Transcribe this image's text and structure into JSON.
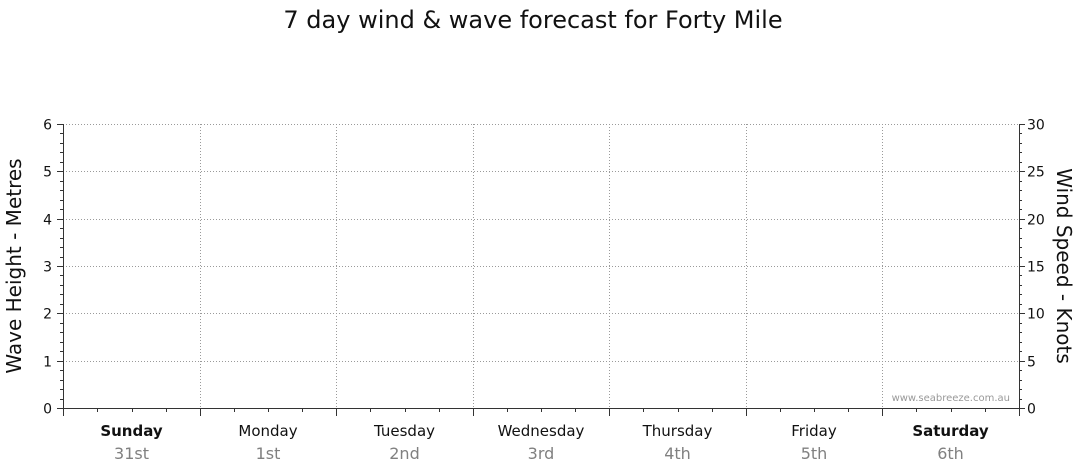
{
  "chart_data": {
    "type": "line",
    "title": "7 day wind & wave forecast for Forty Mile",
    "ylabel_left": "Wave Height - Metres",
    "ylabel_right": "Wind Speed - Knots",
    "y_left_range": [
      0,
      6
    ],
    "y_left_ticks": [
      "0",
      "1",
      "2",
      "3",
      "4",
      "5",
      "6"
    ],
    "y_right_range": [
      0,
      30
    ],
    "y_right_ticks": [
      "0",
      "5",
      "10",
      "15",
      "20",
      "25",
      "30"
    ],
    "grid": true,
    "days": [
      {
        "name": "Sunday",
        "date": "31st",
        "bold": true
      },
      {
        "name": "Monday",
        "date": "1st",
        "bold": false
      },
      {
        "name": "Tuesday",
        "date": "2nd",
        "bold": false
      },
      {
        "name": "Wednesday",
        "date": "3rd",
        "bold": false
      },
      {
        "name": "Thursday",
        "date": "4th",
        "bold": false
      },
      {
        "name": "Friday",
        "date": "5th",
        "bold": false
      },
      {
        "name": "Saturday",
        "date": "6th",
        "bold": true
      }
    ],
    "series": [],
    "watermark": "www.seabreeze.com.au"
  }
}
